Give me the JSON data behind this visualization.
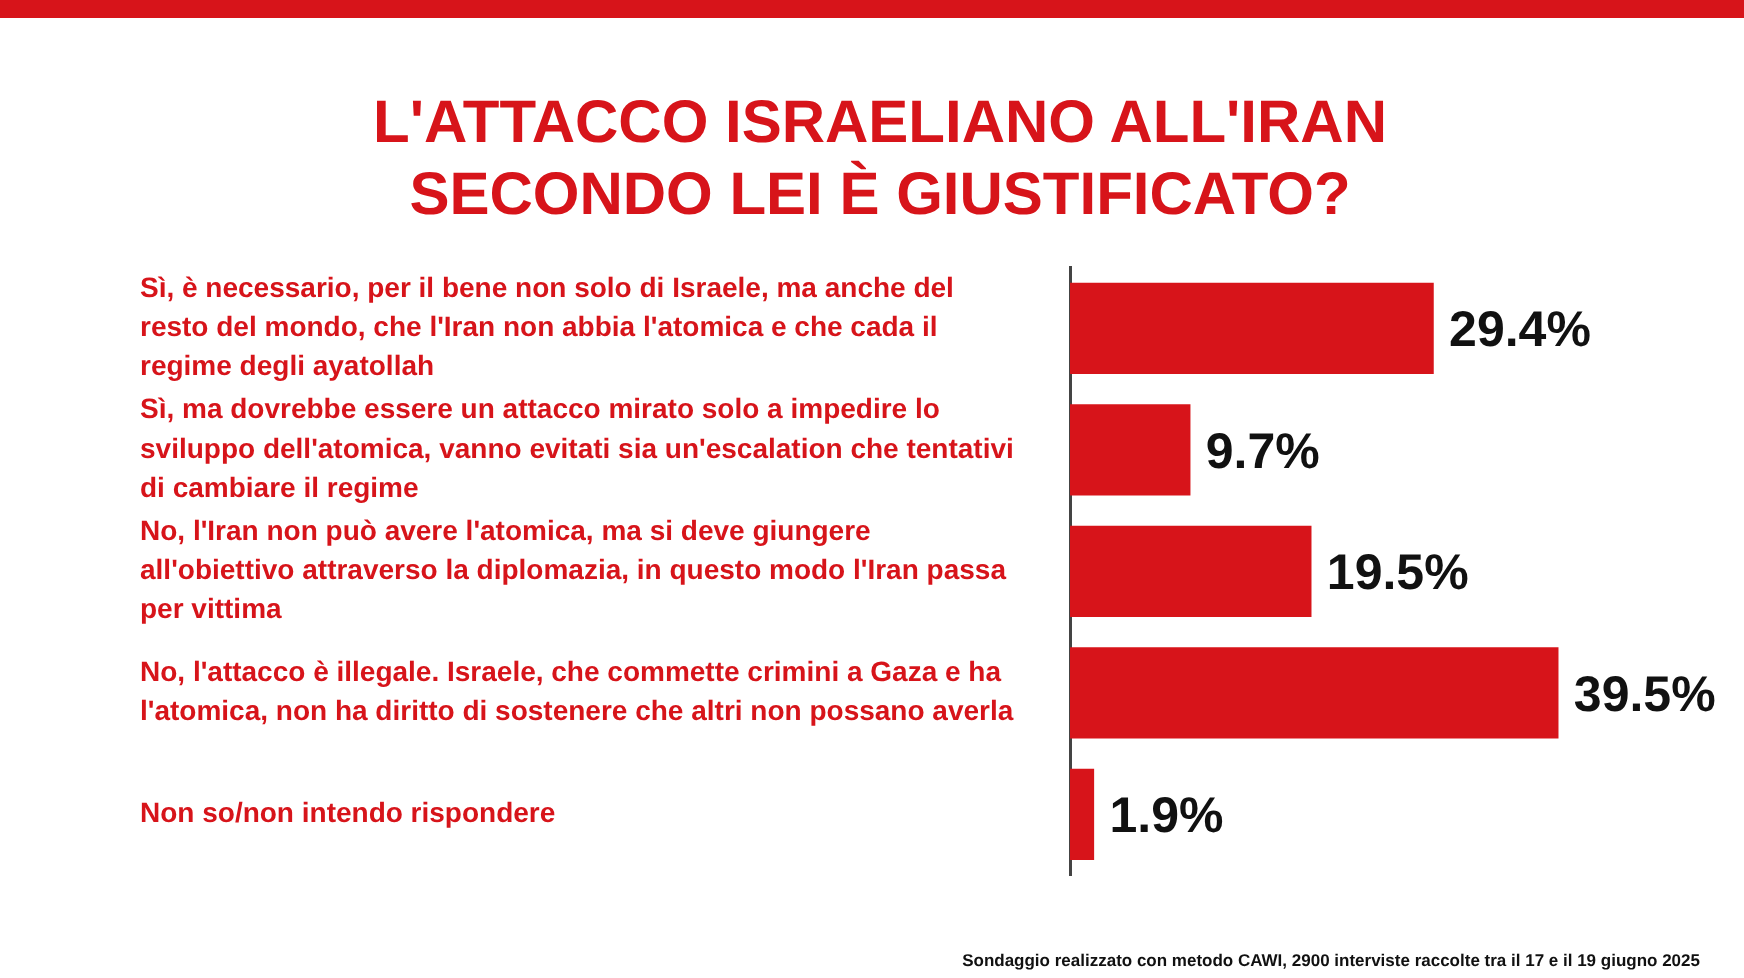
{
  "chart_data": {
    "type": "bar",
    "orientation": "horizontal",
    "title": "L'ATTACCO ISRAELIANO ALL'IRAN SECONDO LEI È GIUSTIFICATO?",
    "categories": [
      "Sì, è necessario, per il bene non solo di Israele, ma anche del resto del mondo, che l'Iran non abbia l'atomica e che cada il regime degli ayatollah",
      "Sì, ma dovrebbe essere un attacco mirato solo a impedire lo sviluppo dell'atomica, vanno evitati sia un'escalation che tentativi di cambiare il regime",
      "No, l'Iran non può avere l'atomica, ma si deve giungere all'obiettivo attraverso la diplomazia, in questo modo l'Iran passa per vittima",
      "No, l'attacco è illegale. Israele, che commette crimini a Gaza e ha l'atomica, non ha diritto di sostenere che altri non possano averla",
      "Non so/non intendo rispondere"
    ],
    "values": [
      29.4,
      9.7,
      19.5,
      39.5,
      1.9
    ],
    "value_labels": [
      "29.4%",
      "9.7%",
      "19.5%",
      "39.5%",
      "1.9%"
    ],
    "color": "#d7141a",
    "tick_labels": "y",
    "legend": false,
    "annotations": [
      "Sondaggio realizzato con metodo CAWI, 2900 interviste raccolte tra il 17 e il 19 giugno 2025"
    ]
  }
}
